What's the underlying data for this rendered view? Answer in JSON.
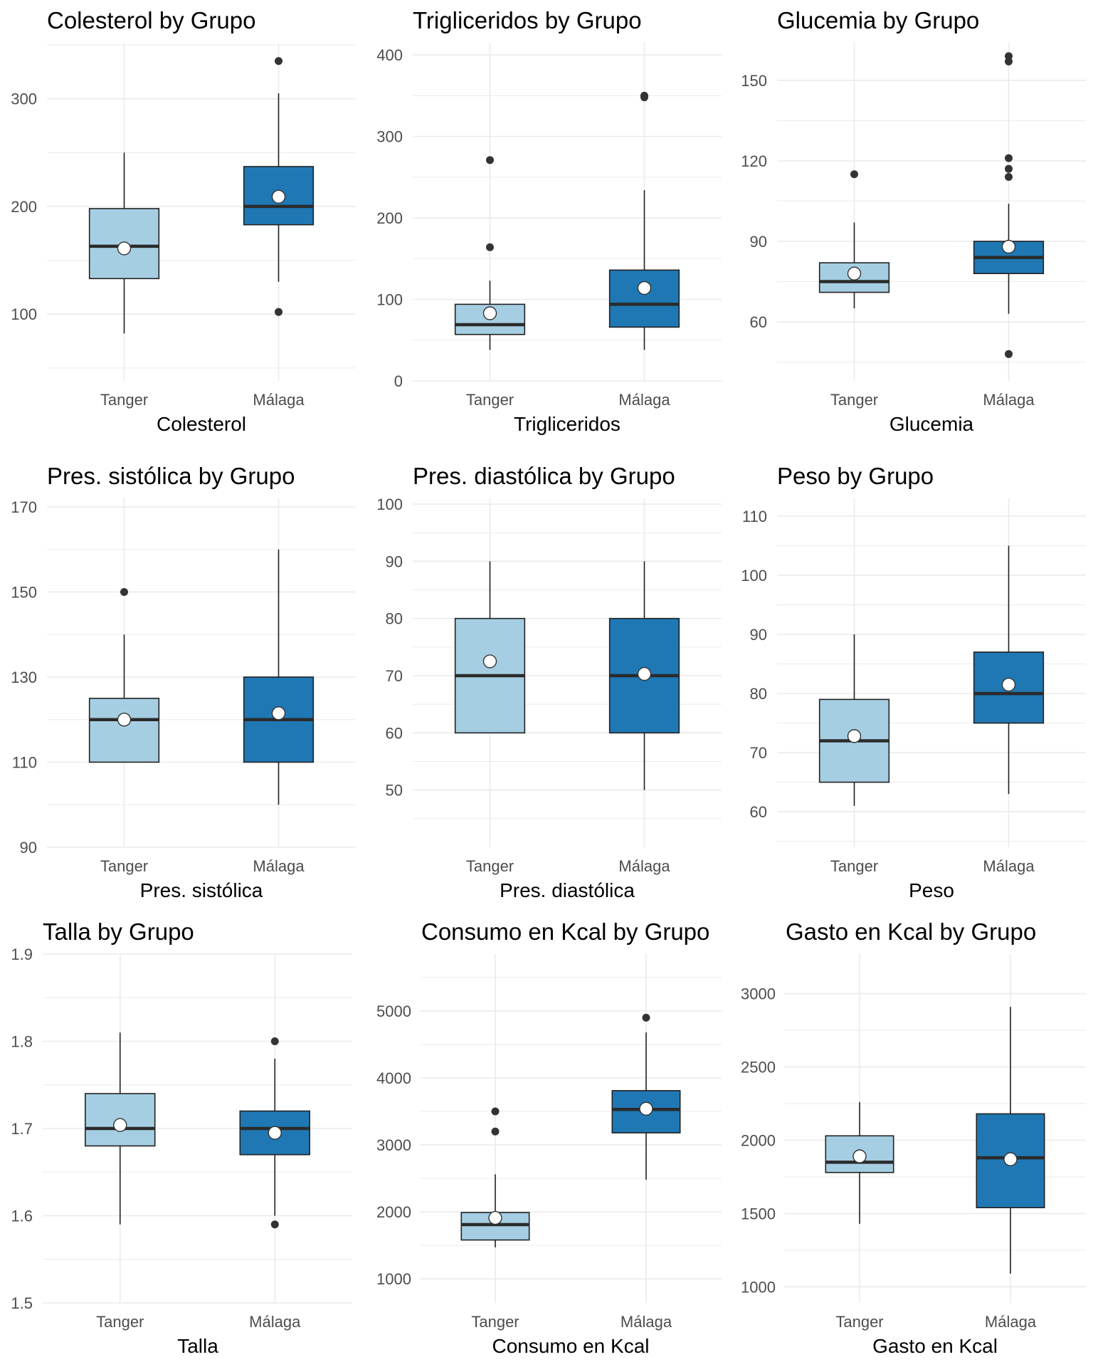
{
  "colors": {
    "tanger": "#a6cee3",
    "malaga": "#1f78b4",
    "outline": "#222222",
    "median": "#2b2b2b",
    "grid": "#ebebeb",
    "mean": "#ffffff"
  },
  "chart_data": [
    {
      "type": "box",
      "title": "Colesterol by Grupo",
      "xlabel": "Colesterol",
      "categories": [
        "Tanger",
        "Málaga"
      ],
      "ylim": [
        38,
        352
      ],
      "yticks": [
        100,
        200,
        300
      ],
      "ytick_labels": [
        "100",
        "200",
        "300"
      ],
      "yminor": [
        50,
        150,
        250,
        350
      ],
      "boxes": [
        {
          "group": "Tanger",
          "lower": 82,
          "q1": 133,
          "median": 163,
          "q3": 198,
          "upper": 250,
          "mean": 161,
          "outliers": []
        },
        {
          "group": "Málaga",
          "lower": 130,
          "q1": 183,
          "median": 200,
          "q3": 237,
          "upper": 305,
          "mean": 209,
          "outliers": [
            335,
            102
          ]
        }
      ]
    },
    {
      "type": "box",
      "title": "Trigliceridos by Grupo",
      "xlabel": "Trigliceridos",
      "categories": [
        "Tanger",
        "Málaga"
      ],
      "ylim": [
        0,
        415
      ],
      "yticks": [
        0,
        100,
        200,
        300,
        400
      ],
      "ytick_labels": [
        "0",
        "100",
        "200",
        "300",
        "400"
      ],
      "yminor": [
        50,
        150,
        250,
        350
      ],
      "boxes": [
        {
          "group": "Tanger",
          "lower": 38,
          "q1": 57,
          "median": 69,
          "q3": 94,
          "upper": 123,
          "mean": 83,
          "outliers": [
            271,
            164
          ]
        },
        {
          "group": "Málaga",
          "lower": 38,
          "q1": 66,
          "median": 94,
          "q3": 136,
          "upper": 234,
          "mean": 114,
          "outliers": [
            350,
            348
          ]
        }
      ]
    },
    {
      "type": "box",
      "title": "Glucemia by Grupo",
      "xlabel": "Glucemia",
      "categories": [
        "Tanger",
        "Málaga"
      ],
      "ylim": [
        38,
        164
      ],
      "yticks": [
        60,
        90,
        120,
        150
      ],
      "ytick_labels": [
        "60",
        "90",
        "120",
        "150"
      ],
      "yminor": [
        45,
        75,
        105,
        135
      ],
      "boxes": [
        {
          "group": "Tanger",
          "lower": 65,
          "q1": 71,
          "median": 75,
          "q3": 82,
          "upper": 97,
          "mean": 78,
          "outliers": [
            115
          ]
        },
        {
          "group": "Málaga",
          "lower": 63,
          "q1": 78,
          "median": 84,
          "q3": 90,
          "upper": 104,
          "mean": 88,
          "outliers": [
            159,
            157,
            121,
            117,
            114,
            48
          ]
        }
      ]
    },
    {
      "type": "box",
      "title": "Pres. sistólica by Grupo",
      "xlabel": "Pres. sistólica",
      "categories": [
        "Tanger",
        "Málaga"
      ],
      "ylim": [
        90,
        172
      ],
      "yticks": [
        90,
        110,
        130,
        150,
        170
      ],
      "ytick_labels": [
        "90",
        "110",
        "130",
        "150",
        "170"
      ],
      "yminor": [
        100,
        120,
        140,
        160
      ],
      "boxes": [
        {
          "group": "Tanger",
          "lower": 110,
          "q1": 110,
          "median": 120,
          "q3": 125,
          "upper": 140,
          "mean": 120,
          "outliers": [
            150
          ]
        },
        {
          "group": "Málaga",
          "lower": 100,
          "q1": 110,
          "median": 120,
          "q3": 130,
          "upper": 160,
          "mean": 121.5,
          "outliers": []
        }
      ]
    },
    {
      "type": "box",
      "title": "Pres. diastólica by Grupo",
      "xlabel": "Pres. diastólica",
      "categories": [
        "Tanger",
        "Málaga"
      ],
      "ylim": [
        40,
        101
      ],
      "yticks": [
        50,
        60,
        70,
        80,
        90,
        100
      ],
      "ytick_labels": [
        "50",
        "60",
        "70",
        "80",
        "90",
        "100"
      ],
      "yminor": [
        45,
        55,
        65,
        75,
        85,
        95
      ],
      "boxes": [
        {
          "group": "Tanger",
          "lower": 60,
          "q1": 60,
          "median": 70,
          "q3": 80,
          "upper": 90,
          "mean": 72.5,
          "outliers": []
        },
        {
          "group": "Málaga",
          "lower": 50,
          "q1": 60,
          "median": 70,
          "q3": 80,
          "upper": 90,
          "mean": 70.3,
          "outliers": []
        }
      ]
    },
    {
      "type": "box",
      "title": "Peso by Grupo",
      "xlabel": "Peso",
      "categories": [
        "Tanger",
        "Málaga"
      ],
      "ylim": [
        54,
        113
      ],
      "yticks": [
        60,
        70,
        80,
        90,
        100,
        110
      ],
      "ytick_labels": [
        "60",
        "70",
        "80",
        "90",
        "100",
        "110"
      ],
      "yminor": [
        55,
        65,
        75,
        85,
        95,
        105
      ],
      "boxes": [
        {
          "group": "Tanger",
          "lower": 61,
          "q1": 65,
          "median": 72,
          "q3": 79,
          "upper": 90,
          "mean": 72.8,
          "outliers": []
        },
        {
          "group": "Málaga",
          "lower": 63,
          "q1": 75,
          "median": 80,
          "q3": 87,
          "upper": 105,
          "mean": 81.5,
          "outliers": []
        }
      ]
    },
    {
      "type": "box",
      "title": "Talla by Grupo",
      "xlabel": "Talla",
      "categories": [
        "Tanger",
        "Málaga"
      ],
      "ylim": [
        1.5,
        1.9
      ],
      "yticks": [
        1.5,
        1.6,
        1.7,
        1.8,
        1.9
      ],
      "ytick_labels": [
        "1.5",
        "1.6",
        "1.7",
        "1.8",
        "1.9"
      ],
      "yminor": [
        1.55,
        1.65,
        1.75,
        1.85
      ],
      "boxes": [
        {
          "group": "Tanger",
          "lower": 1.59,
          "q1": 1.68,
          "median": 1.7,
          "q3": 1.74,
          "upper": 1.81,
          "mean": 1.704,
          "outliers": []
        },
        {
          "group": "Málaga",
          "lower": 1.6,
          "q1": 1.67,
          "median": 1.7,
          "q3": 1.72,
          "upper": 1.78,
          "mean": 1.695,
          "outliers": [
            1.8,
            1.59
          ]
        }
      ]
    },
    {
      "type": "box",
      "title": "Consumo en Kcal by Grupo",
      "xlabel": "Consumo en Kcal",
      "categories": [
        "Tanger",
        "Málaga"
      ],
      "ylim": [
        640,
        5850
      ],
      "yticks": [
        1000,
        2000,
        3000,
        4000,
        5000
      ],
      "ytick_labels": [
        "1000",
        "2000",
        "3000",
        "4000",
        "5000"
      ],
      "yminor": [
        1500,
        2500,
        3500,
        4500,
        5500
      ],
      "boxes": [
        {
          "group": "Tanger",
          "lower": 1470,
          "q1": 1580,
          "median": 1810,
          "q3": 1990,
          "upper": 2560,
          "mean": 1910,
          "outliers": [
            3500,
            3200
          ]
        },
        {
          "group": "Málaga",
          "lower": 2480,
          "q1": 3180,
          "median": 3530,
          "q3": 3810,
          "upper": 4680,
          "mean": 3540,
          "outliers": [
            4900
          ]
        }
      ]
    },
    {
      "type": "box",
      "title": "Gasto en Kcal by Grupo",
      "xlabel": "Gasto en Kcal",
      "categories": [
        "Tanger",
        "Málaga"
      ],
      "ylim": [
        890,
        3270
      ],
      "yticks": [
        1000,
        1500,
        2000,
        2500,
        3000
      ],
      "ytick_labels": [
        "1000",
        "1500",
        "2000",
        "2500",
        "3000"
      ],
      "yminor": [
        1250,
        1750,
        2250,
        2750
      ],
      "boxes": [
        {
          "group": "Tanger",
          "lower": 1430,
          "q1": 1780,
          "median": 1850,
          "q3": 2030,
          "upper": 2260,
          "mean": 1890,
          "outliers": []
        },
        {
          "group": "Málaga",
          "lower": 1090,
          "q1": 1540,
          "median": 1880,
          "q3": 2180,
          "upper": 2910,
          "mean": 1870,
          "outliers": []
        }
      ]
    }
  ]
}
